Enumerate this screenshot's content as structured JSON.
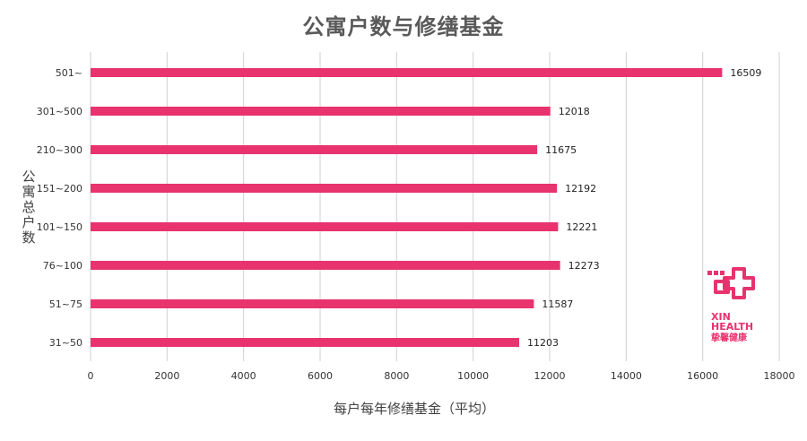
{
  "chart_data": {
    "type": "bar",
    "orientation": "horizontal",
    "title": "公寓户数与修缮基金",
    "xlabel": "每户每年修缮基金（平均）",
    "ylabel": "公寓总户数",
    "categories": [
      "501~",
      "301~500",
      "210~300",
      "151~200",
      "101~150",
      "76~100",
      "51~75",
      "31~50"
    ],
    "values": [
      16509,
      12018,
      11675,
      12192,
      12221,
      12273,
      11587,
      11203
    ],
    "xlim": [
      0,
      18000
    ],
    "xticks": [
      0,
      2000,
      4000,
      6000,
      8000,
      10000,
      12000,
      14000,
      16000,
      18000
    ],
    "grid": true,
    "bar_color": "#e8336e",
    "grid_color": "#d0d0d0"
  },
  "logo": {
    "icon": "medical-cross-logo-icon",
    "line1": "XIN",
    "line2": "HEALTH",
    "line3": "挚馨健康",
    "color": "#e8336e"
  }
}
